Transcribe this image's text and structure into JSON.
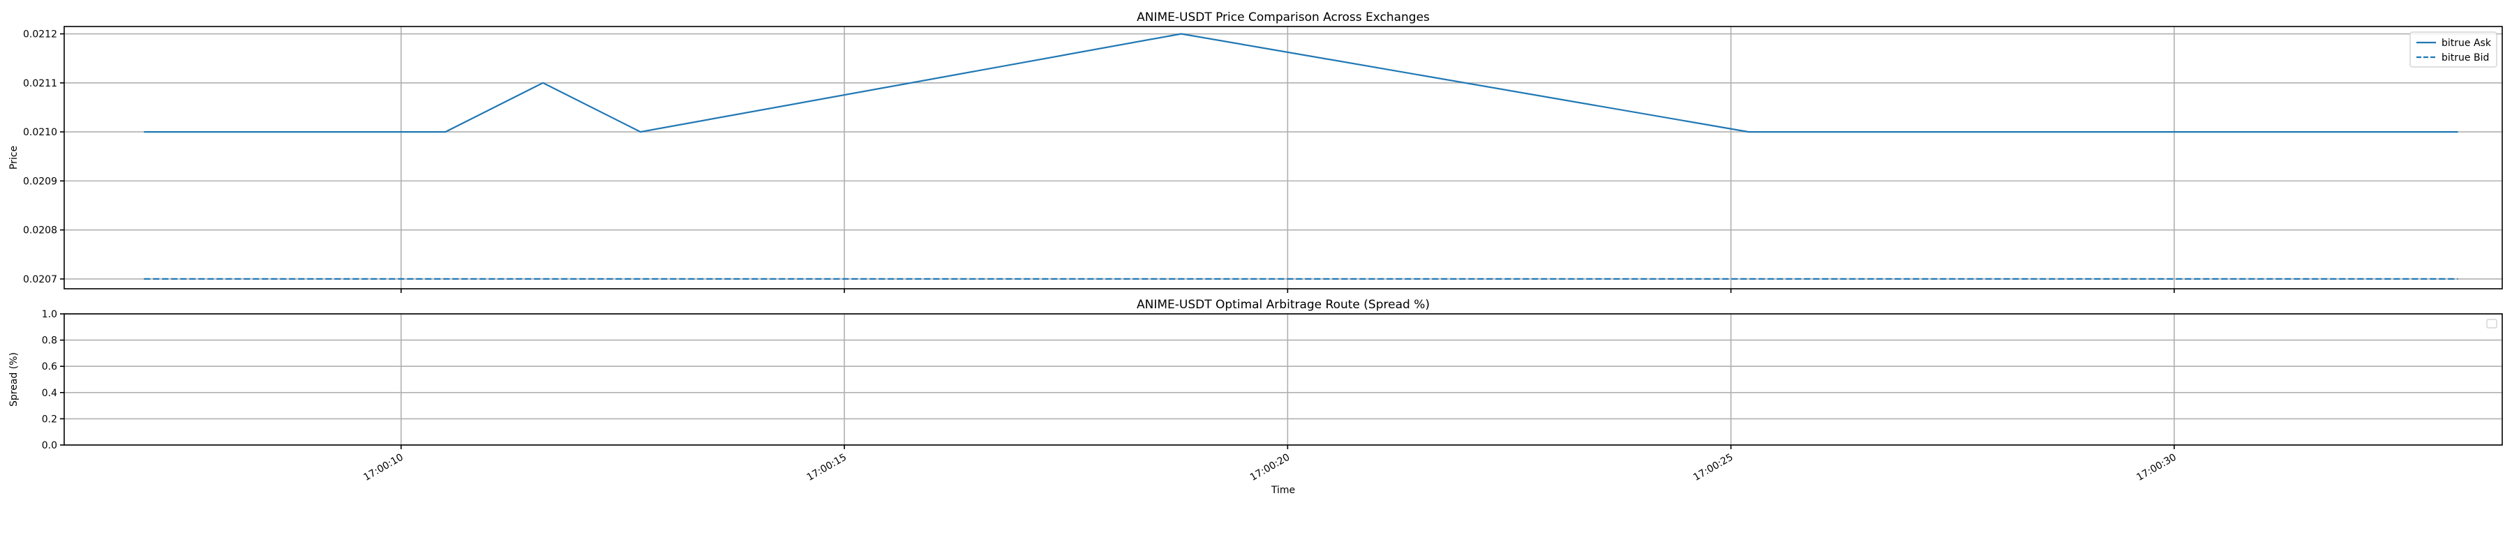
{
  "chart_data": [
    {
      "type": "line",
      "title": "ANIME-USDT Price Comparison Across Exchanges",
      "xlabel": "",
      "ylabel": "Price",
      "x_unit": "seconds after 17:00:00",
      "xlim": [
        6.2,
        33.7
      ],
      "ylim": [
        0.02068,
        0.021215
      ],
      "yticks": [
        0.0207,
        0.0208,
        0.0209,
        0.021,
        0.0211,
        0.0212
      ],
      "ytick_labels": [
        "0.0207",
        "0.0208",
        "0.0209",
        "0.0210",
        "0.0211",
        "0.0212"
      ],
      "xticks": [
        10,
        15,
        20,
        25,
        30
      ],
      "xtick_labels_visible": false,
      "grid": true,
      "legend": "upper-right",
      "series": [
        {
          "name": "bitrue Ask",
          "style": "solid",
          "color": "#1f77b4",
          "x": [
            7.1,
            10.5,
            11.6,
            12.7,
            18.8,
            25.2,
            33.2
          ],
          "y": [
            0.021,
            0.021,
            0.0211,
            0.021,
            0.0212,
            0.021,
            0.021
          ]
        },
        {
          "name": "bitrue Bid",
          "style": "dashed",
          "color": "#1f77b4",
          "x": [
            7.1,
            33.2
          ],
          "y": [
            0.0207,
            0.0207
          ]
        }
      ]
    },
    {
      "type": "line",
      "title": "ANIME-USDT Optimal Arbitrage Route (Spread %)",
      "xlabel": "Time",
      "ylabel": "Spread (%)",
      "x_unit": "seconds after 17:00:00",
      "xlim": [
        6.2,
        33.7
      ],
      "ylim": [
        0.0,
        1.0
      ],
      "yticks": [
        0.0,
        0.2,
        0.4,
        0.6,
        0.8,
        1.0
      ],
      "ytick_labels": [
        "0.0",
        "0.2",
        "0.4",
        "0.6",
        "0.8",
        "1.0"
      ],
      "xticks": [
        10,
        15,
        20,
        25,
        30
      ],
      "xtick_labels": [
        "17:00:10",
        "17:00:15",
        "17:00:20",
        "17:00:25",
        "17:00:30"
      ],
      "grid": true,
      "legend": "upper-right (empty)",
      "series": []
    }
  ]
}
